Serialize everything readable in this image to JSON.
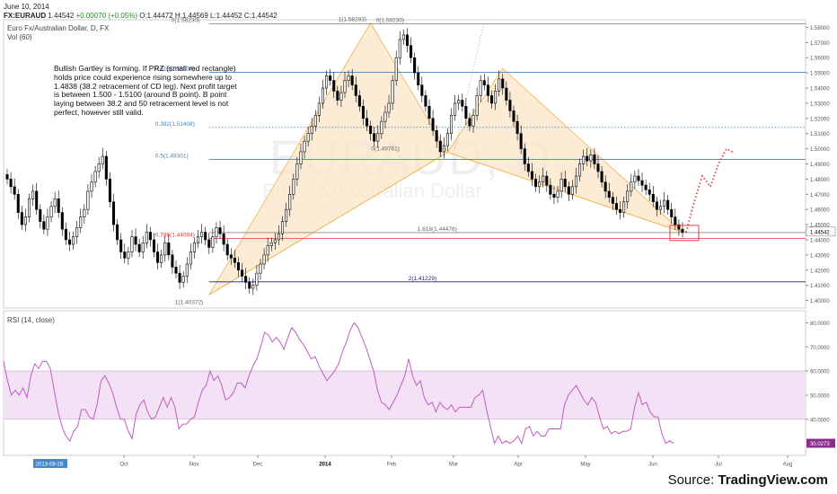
{
  "header": {
    "date": "June 10, 2014",
    "symbol": "FX:EURAUD",
    "last": "1.44542",
    "change": "+0.00070 (+0.05%)",
    "open": "O:1.44472",
    "high": "H:1.44569",
    "low": "L:1.44452",
    "close": "C:1.44542"
  },
  "instrument": "Euro Fx/Australian Dollar, D, FX",
  "vol_label": "Vol (60)",
  "rsi_label": "RSI (14, close)",
  "watermark": {
    "symbol": "EURAUD, D",
    "name": "Euro Fx/Australian Dollar"
  },
  "note": "Bullish Gartley is forming. If PRZ (small red rectangle) holds price could experience rising somewhere up to 1.4838 (38.2 retracement of CD leg). Next profit target is between 1.500 - 1.5100 (around B point). B point laying between 38.2 and 50 retracement level is not perfect, however still valid.",
  "source": {
    "prefix": "Source: ",
    "brand": "TradingView.com"
  },
  "colors": {
    "up": "#ffffff",
    "down": "#000000",
    "pattern_fill": "#fbe6c8",
    "pattern_stroke": "#f2b24f",
    "rsi": "#c05bc0",
    "rsi_band": "#f3e2f6",
    "prz": "#e23b3b",
    "arrow": "#e23b3b"
  },
  "chart_data": [
    {
      "type": "candlestick",
      "title": "Euro Fx/Australian Dollar, D, FX",
      "x_ticks": [
        "2013-08-28",
        "Oct",
        "Nov",
        "Dec",
        "2014",
        "Feb",
        "Mar",
        "Apr",
        "May",
        "Jun",
        "Jul",
        "Aug"
      ],
      "ylim": [
        1.395,
        1.585
      ],
      "y_ticks": [
        "1.58000",
        "1.57000",
        "1.56000",
        "1.55000",
        "1.54000",
        "1.53000",
        "1.52000",
        "1.51000",
        "1.50000",
        "1.49000",
        "1.48000",
        "1.47000",
        "1.46000",
        "1.45000",
        "1.44542",
        "1.44000",
        "1.43000",
        "1.42000",
        "1.41000",
        "1.40000"
      ],
      "last_price": 1.44542,
      "fib_levels": [
        {
          "label": "0(1.58230)",
          "value": 1.5823,
          "color": "#888888",
          "style": "solid"
        },
        {
          "label": "1(1.58293)",
          "value": 1.58293,
          "color": "#888888",
          "style": "none"
        },
        {
          "label": "0(1.58230)",
          "value": 1.5823,
          "color": "#888888",
          "style": "none"
        },
        {
          "label": "0.618(1.55034)",
          "value": 1.55034,
          "color": "#4a7fc1",
          "style": "solid"
        },
        {
          "label": "0.382(1.51408)",
          "value": 1.51408,
          "color": "#4a7fc1",
          "style": "dotted"
        },
        {
          "label": "0.5(1.49301)",
          "value": 1.49301,
          "color": "#4a7fc1",
          "style": "solid"
        },
        {
          "label": "0(1.49761)",
          "value": 1.49761,
          "color": "#888888",
          "style": "none"
        },
        {
          "label": "1.618(1.44476)",
          "value": 1.44476,
          "color": "#888888",
          "style": "solid"
        },
        {
          "label": "0.786(1.44094)",
          "value": 1.44094,
          "color": "#e23b3b",
          "style": "solid"
        },
        {
          "label": "2(1.41229)",
          "value": 1.41229,
          "color": "#1c1c80",
          "style": "solid"
        },
        {
          "label": "1(1.40372)",
          "value": 1.40372,
          "color": "#888888",
          "style": "none"
        }
      ],
      "series": [
        {
          "name": "",
          "values": [
            1.48,
            1.475,
            1.47,
            1.458,
            1.45,
            1.455,
            1.467,
            1.472,
            1.46,
            1.452,
            1.447,
            1.455,
            1.462,
            1.467,
            1.458,
            1.447,
            1.44,
            1.437,
            1.442,
            1.448,
            1.455,
            1.46,
            1.472,
            1.478,
            1.485,
            1.49,
            1.495,
            1.48,
            1.465,
            1.45,
            1.44,
            1.432,
            1.428,
            1.432,
            1.442,
            1.437,
            1.432,
            1.438,
            1.445,
            1.44,
            1.432,
            1.425,
            1.43,
            1.438,
            1.43,
            1.422,
            1.418,
            1.412,
            1.416,
            1.424,
            1.432,
            1.438,
            1.442,
            1.445,
            1.44,
            1.435,
            1.442,
            1.448,
            1.444,
            1.437,
            1.43,
            1.428,
            1.425,
            1.42,
            1.416,
            1.412,
            1.408,
            1.41,
            1.418,
            1.424,
            1.43,
            1.436,
            1.438,
            1.44,
            1.444,
            1.452,
            1.46,
            1.47,
            1.48,
            1.49,
            1.498,
            1.505,
            1.51,
            1.515,
            1.522,
            1.53,
            1.54,
            1.548,
            1.545,
            1.538,
            1.532,
            1.537,
            1.545,
            1.548,
            1.542,
            1.535,
            1.528,
            1.52,
            1.515,
            1.51,
            1.505,
            1.51,
            1.518,
            1.524,
            1.53,
            1.545,
            1.56,
            1.572,
            1.575,
            1.568,
            1.56,
            1.55,
            1.542,
            1.535,
            1.528,
            1.52,
            1.512,
            1.505,
            1.498,
            1.502,
            1.51,
            1.522,
            1.53,
            1.532,
            1.528,
            1.52,
            1.515,
            1.522,
            1.535,
            1.545,
            1.542,
            1.535,
            1.53,
            1.538,
            1.546,
            1.54,
            1.532,
            1.525,
            1.518,
            1.51,
            1.5,
            1.49,
            1.485,
            1.48,
            1.475,
            1.478,
            1.482,
            1.476,
            1.47,
            1.468,
            1.472,
            1.48,
            1.475,
            1.47,
            1.475,
            1.482,
            1.49,
            1.495,
            1.492,
            1.496,
            1.49,
            1.485,
            1.478,
            1.472,
            1.468,
            1.464,
            1.46,
            1.458,
            1.465,
            1.472,
            1.478,
            1.482,
            1.479,
            1.476,
            1.473,
            1.47,
            1.465,
            1.46,
            1.462,
            1.466,
            1.46,
            1.455,
            1.45,
            1.447,
            1.445
          ]
        }
      ],
      "projection": [
        [
          1.445,
          1.465,
          1.482,
          1.475,
          1.49,
          1.5,
          1.497
        ]
      ]
    },
    {
      "type": "line",
      "title": "RSI (14, close)",
      "ylim": [
        25,
        85
      ],
      "y_ticks": [
        "80.0000",
        "70.0000",
        "60.0000",
        "50.0000",
        "40.0000"
      ],
      "band": [
        40,
        60
      ],
      "last_value": "30.0273",
      "series": [
        {
          "name": "",
          "values": [
            64,
            56,
            50,
            52,
            50,
            53,
            49,
            58,
            63,
            61,
            64,
            64,
            61,
            52,
            43,
            37,
            33,
            31,
            35,
            37,
            44,
            44,
            41,
            40,
            46,
            56,
            58,
            55,
            51,
            45,
            40,
            40,
            35,
            32,
            42,
            46,
            48,
            43,
            40,
            41,
            45,
            49,
            45,
            49,
            45,
            36,
            38,
            38,
            40,
            41,
            47,
            52,
            54,
            60,
            56,
            58,
            54,
            48,
            49,
            51,
            55,
            55,
            53,
            58,
            62,
            65,
            70,
            76,
            75,
            72,
            74,
            72,
            69,
            74,
            78,
            76,
            73,
            71,
            68,
            65,
            66,
            62,
            59,
            56,
            58,
            60,
            63,
            68,
            72,
            77,
            80,
            78,
            74,
            70,
            65,
            60,
            52,
            47,
            46,
            44,
            47,
            50,
            54,
            58,
            65,
            58,
            54,
            56,
            49,
            46,
            47,
            43,
            47,
            45,
            44,
            46,
            43,
            45,
            45,
            45,
            45,
            49,
            50,
            52,
            44,
            37,
            30,
            33,
            30,
            31,
            30,
            31,
            33,
            30,
            36,
            37,
            33,
            35,
            33,
            33,
            36,
            36,
            36,
            36,
            46,
            50,
            52,
            54,
            51,
            48,
            46,
            49,
            47,
            41,
            36,
            37,
            34,
            35,
            34,
            35,
            35,
            36,
            45,
            51,
            46,
            47,
            43,
            41,
            41,
            34,
            30,
            31,
            30
          ]
        }
      ]
    }
  ]
}
